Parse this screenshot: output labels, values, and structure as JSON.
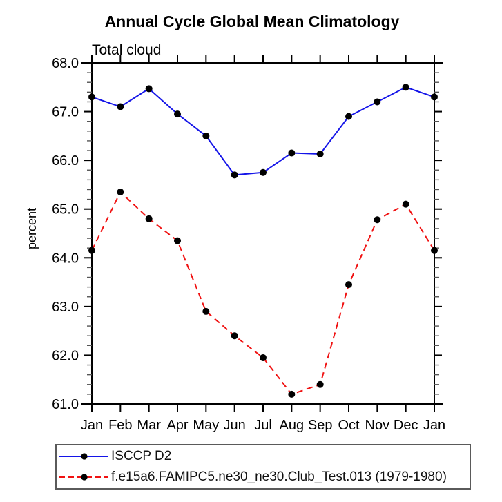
{
  "chart": {
    "accent_colors": {
      "axis": "#000000",
      "minor_tick": "#555555",
      "legend_border": "#5a5a5a"
    }
  },
  "chart_data": {
    "type": "line",
    "title": "Annual Cycle Global Mean Climatology",
    "subtitle": "Total cloud",
    "ylabel": "percent",
    "categories": [
      "Jan",
      "Feb",
      "Mar",
      "Apr",
      "May",
      "Jun",
      "Jul",
      "Aug",
      "Sep",
      "Oct",
      "Nov",
      "Dec",
      "Jan"
    ],
    "ylim": [
      61.0,
      68.0
    ],
    "ytick_step": 1.0,
    "yminor_step": 0.2,
    "ytick_format_decimals": 1,
    "grid": false,
    "legend_position": "bottom-left",
    "series": [
      {
        "name": "ISCCP D2",
        "color": "#1414e8",
        "style": "solid",
        "marker": "circle",
        "marker_color": "#000000",
        "values": [
          67.3,
          67.1,
          67.47,
          66.95,
          66.5,
          65.7,
          65.75,
          66.15,
          66.13,
          66.9,
          67.2,
          67.5,
          67.3
        ]
      },
      {
        "name": "f.e15a6.FAMIPC5.ne30_ne30.Club_Test.013 (1979-1980)",
        "color": "#f01212",
        "style": "dashed",
        "marker": "circle",
        "marker_color": "#000000",
        "values": [
          64.15,
          65.35,
          64.8,
          64.35,
          62.9,
          62.4,
          61.95,
          61.2,
          61.4,
          63.45,
          64.78,
          65.1,
          64.15
        ]
      }
    ]
  }
}
